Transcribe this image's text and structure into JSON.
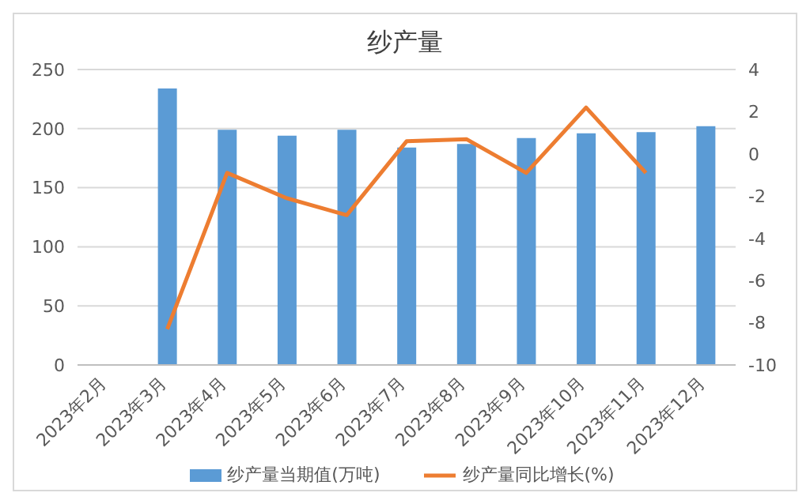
{
  "chart_data": {
    "type": "bar",
    "title": "纱产量",
    "categories": [
      "2023年2月",
      "2023年3月",
      "2023年4月",
      "2023年5月",
      "2023年6月",
      "2023年7月",
      "2023年8月",
      "2023年9月",
      "2023年10月",
      "2023年11月",
      "2023年12月"
    ],
    "series": [
      {
        "name": "纱产量当期值(万吨)",
        "color": "#5b9bd5",
        "values": [
          null,
          234,
          199,
          194,
          199,
          184,
          187,
          192,
          196,
          197,
          202
        ]
      },
      {
        "name": "纱产量同比增长(%)",
        "type": "line",
        "axis": "y2",
        "color": "#ed7d31",
        "values": [
          null,
          -8.3,
          -0.9,
          -2.1,
          -2.9,
          0.6,
          0.7,
          -0.9,
          2.2,
          -0.9,
          null
        ]
      }
    ],
    "ylim": [
      0,
      250
    ],
    "yticks": [
      0,
      50,
      100,
      150,
      200,
      250
    ],
    "y2lim": [
      -10,
      4
    ],
    "y2ticks": [
      -10,
      -8,
      -6,
      -4,
      -2,
      0,
      2,
      4
    ],
    "grid": "y",
    "legend": "bottom",
    "marker": "none"
  }
}
